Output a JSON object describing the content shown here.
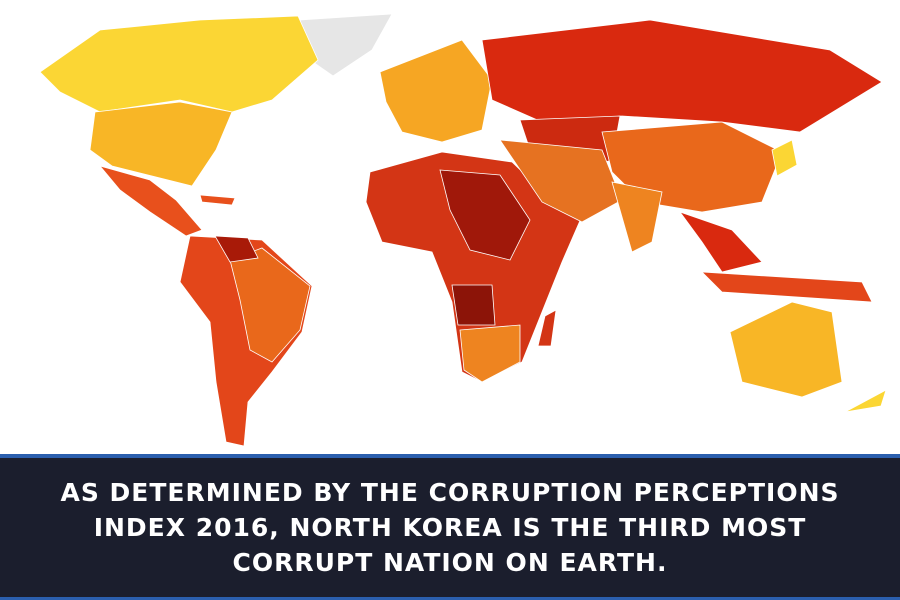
{
  "caption": {
    "lines": [
      "AS DETERMINED BY THE CORRUPTION PERCEPTIONS",
      "INDEX 2016, NORTH KOREA IS THE THIRD MOST",
      "CORRUPT NATION ON EARTH."
    ]
  }
}
